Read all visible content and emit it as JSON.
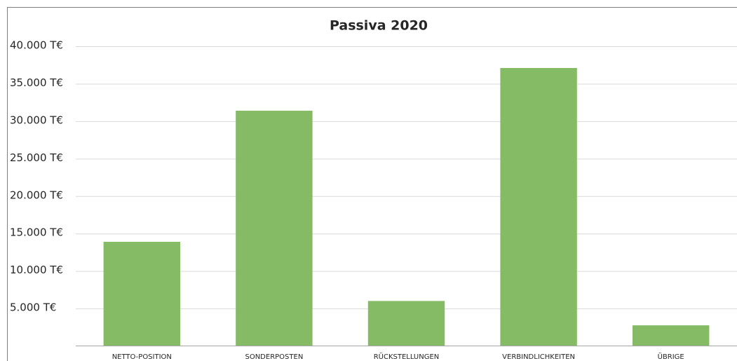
{
  "chart_data": {
    "type": "bar",
    "title": "Passiva 2020",
    "categories": [
      "NETTO-POSITION",
      "SONDERPOSTEN",
      "RÜCKSTELLUNGEN",
      "VERBINDLICHKEITEN",
      "ÜBRIGE"
    ],
    "values": [
      13900,
      31400,
      6000,
      37100,
      2750
    ],
    "color": "#85bb65",
    "ylim": [
      0,
      40000
    ],
    "yticks": [
      {
        "value": 5000,
        "label": "5.000 T€"
      },
      {
        "value": 10000,
        "label": "10.000 T€"
      },
      {
        "value": 15000,
        "label": "15.000 T€"
      },
      {
        "value": 20000,
        "label": "20.000 T€"
      },
      {
        "value": 25000,
        "label": "25.000 T€"
      },
      {
        "value": 30000,
        "label": "30.000 T€"
      },
      {
        "value": 35000,
        "label": "35.000 T€"
      },
      {
        "value": 40000,
        "label": "40.000 T€"
      }
    ],
    "grid": true
  }
}
